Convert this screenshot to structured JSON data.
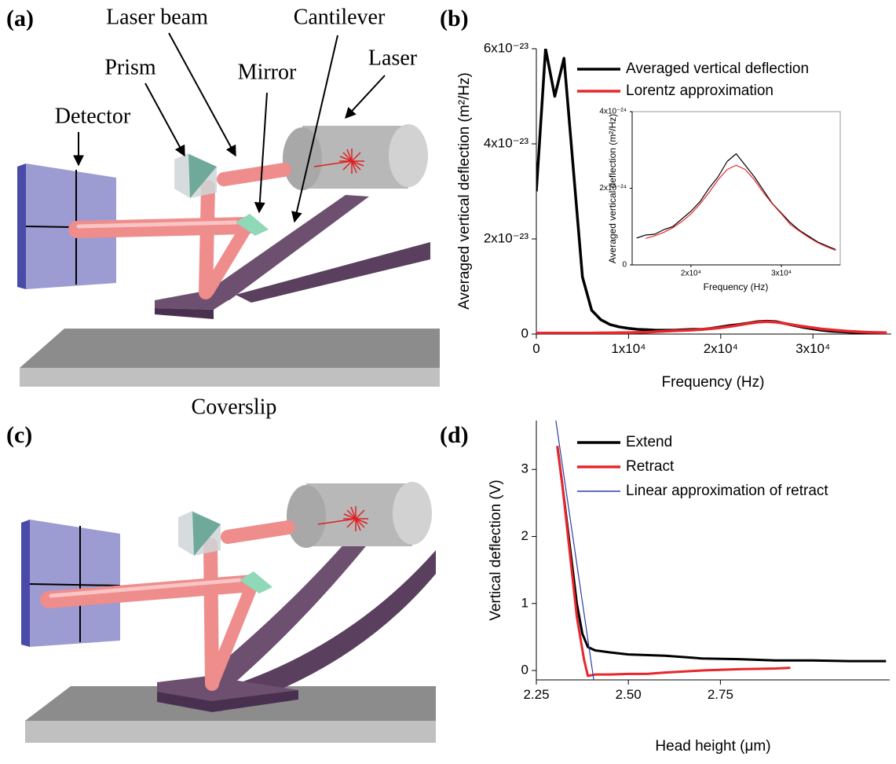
{
  "panel_labels": [
    "(a)",
    "(b)",
    "(c)",
    "(d)"
  ],
  "diagram": {
    "laser_beam": "Laser beam",
    "cantilever": "Cantilever",
    "prism": "Prism",
    "mirror": "Mirror",
    "laser": "Laser",
    "detector": "Detector",
    "coverslip": "Coverslip"
  },
  "chart_data": [
    {
      "type": "line",
      "xlabel": "Frequency (Hz)",
      "ylabel": "Averaged vertical deflection (m²/Hz)",
      "x": [
        0,
        1000,
        2000,
        3000,
        4000,
        5000,
        6000,
        7000,
        8000,
        9000,
        10000,
        11000,
        12000,
        13000,
        14000,
        15000,
        16000,
        17000,
        18000,
        19000,
        20000,
        21000,
        22000,
        23000,
        24000,
        25000,
        26000,
        27000,
        28000,
        29000,
        30000,
        31000,
        32000,
        33000,
        34000,
        35000,
        36000,
        37000,
        38000
      ],
      "series": [
        {
          "name": "Averaged vertical deflection",
          "color": "#000000",
          "values": [
            3e-23,
            6e-23,
            5e-23,
            5.8e-23,
            3.5e-23,
            1.2e-23,
            5e-24,
            3e-24,
            2e-24,
            1.5e-24,
            1.2e-24,
            1e-24,
            9e-25,
            8e-25,
            8e-25,
            8e-25,
            9e-25,
            1e-24,
            1e-24,
            1.2e-24,
            1.5e-24,
            1.8e-24,
            2e-24,
            2.3e-24,
            2.6e-24,
            2.7e-24,
            2.6e-24,
            2.2e-24,
            1.8e-24,
            1.4e-24,
            1.1e-24,
            8e-25,
            6e-25,
            5e-25,
            4e-25,
            3e-25,
            3e-25,
            2e-25,
            2e-25
          ]
        },
        {
          "name": "Lorentz approximation",
          "color": "#e8262b",
          "values": [
            2e-25,
            2e-25,
            2e-25,
            2e-25,
            2e-25,
            2e-25,
            2e-25,
            2.5e-25,
            2.5e-25,
            3e-25,
            3e-25,
            3.5e-25,
            4e-25,
            5e-25,
            6e-25,
            6.9e-25,
            7.6e-25,
            8.5e-25,
            9.7e-25,
            1.13e-24,
            1.33e-24,
            1.59e-24,
            1.89e-24,
            2.22e-24,
            2.49e-24,
            2.6e-24,
            2.49e-24,
            2.22e-24,
            1.89e-24,
            1.59e-24,
            1.33e-24,
            1.05e-24,
            8.8e-25,
            7.2e-25,
            5.8e-25,
            4.7e-25,
            3.8e-25,
            3.3e-25,
            3e-25
          ]
        }
      ],
      "xlim": [
        0,
        38500
      ],
      "xticks": [
        0,
        {
          "value": 10000,
          "label": "1x10⁴"
        },
        {
          "value": 20000,
          "label": "2x10⁴"
        },
        {
          "value": 30000,
          "label": "3x10⁴"
        }
      ],
      "ylim": [
        0,
        6e-23
      ],
      "yticks": [
        0,
        {
          "value": 2e-23,
          "label": "2x10⁻²³"
        },
        {
          "value": 4e-23,
          "label": "4x10⁻²³"
        },
        {
          "value": 6e-23,
          "label": "6x10⁻²³"
        }
      ]
    },
    {
      "type": "line",
      "xlabel": "Frequency (Hz)",
      "ylabel": "Averaged vertical deflection (m²/Hz)",
      "x": [
        14000,
        15000,
        16000,
        17000,
        18000,
        19000,
        20000,
        21000,
        22000,
        23000,
        24000,
        25000,
        26000,
        27000,
        28000,
        29000,
        30000,
        31000,
        32000,
        33000,
        34000,
        35000,
        36000
      ],
      "series": [
        {
          "color": "#000000",
          "values": [
            7e-25,
            7.8e-25,
            8e-25,
            9.2e-25,
            1e-24,
            1.2e-24,
            1.4e-24,
            1.65e-24,
            2e-24,
            2.3e-24,
            2.7e-24,
            2.9e-24,
            2.6e-24,
            2.3e-24,
            1.95e-24,
            1.6e-24,
            1.35e-24,
            1.1e-24,
            9e-25,
            7.5e-25,
            6e-25,
            5e-25,
            4e-25
          ]
        },
        {
          "color": "#e8262b",
          "values": [
            null,
            6.9e-25,
            7.6e-25,
            8.5e-25,
            9.7e-25,
            1.13e-24,
            1.33e-24,
            1.59e-24,
            1.89e-24,
            2.22e-24,
            2.49e-24,
            2.6e-24,
            2.49e-24,
            2.22e-24,
            1.89e-24,
            1.59e-24,
            1.33e-24,
            1.05e-24,
            8.8e-25,
            7.2e-25,
            5.8e-25,
            4.7e-25,
            3.8e-25
          ]
        }
      ],
      "xlim": [
        13500,
        36500
      ],
      "xticks": [
        {
          "value": 20000,
          "label": "2x10⁴"
        },
        {
          "value": 30000,
          "label": "3x10⁴"
        }
      ],
      "ylim": [
        0,
        4e-24
      ],
      "yticks": [
        0,
        {
          "value": 2e-24,
          "label": "2x10⁻²⁴"
        },
        {
          "value": 4e-24,
          "label": "4x10⁻²⁴"
        }
      ]
    },
    {
      "type": "line",
      "xlabel": "Head height (μm)",
      "ylabel": "Vertical deflection (V)",
      "series": [
        {
          "name": "Extend",
          "color": "#000000",
          "x": [
            2.307,
            2.32,
            2.34,
            2.36,
            2.375,
            2.39,
            2.41,
            2.45,
            2.5,
            2.6,
            2.7,
            2.8,
            2.9,
            3.0,
            3.1,
            3.2
          ],
          "values": [
            3.35,
            2.8,
            1.9,
            1.0,
            0.55,
            0.35,
            0.3,
            0.27,
            0.24,
            0.22,
            0.18,
            0.17,
            0.15,
            0.15,
            0.14,
            0.14
          ]
        },
        {
          "name": "Retract",
          "color": "#e8262b",
          "x": [
            2.307,
            2.32,
            2.34,
            2.36,
            2.38,
            2.39,
            2.41,
            2.45,
            2.5,
            2.55,
            2.6,
            2.7,
            2.8,
            2.9,
            2.94
          ],
          "values": [
            3.35,
            2.8,
            1.8,
            0.8,
            0.15,
            -0.08,
            -0.06,
            -0.06,
            -0.05,
            -0.05,
            -0.03,
            0.0,
            0.02,
            0.03,
            0.04
          ]
        },
        {
          "name": "Linear approximation of retract",
          "color": "#2b3fa8",
          "x": [
            2.303,
            2.406
          ],
          "values": [
            3.73,
            -0.14
          ]
        }
      ],
      "xlim": [
        2.25,
        3.21
      ],
      "xticks": [
        2.25,
        {
          "value": 2.5,
          "label": "2.50"
        },
        2.75
      ],
      "ylim": [
        -0.14,
        3.73
      ],
      "yticks": [
        0,
        1,
        2,
        3
      ]
    }
  ]
}
